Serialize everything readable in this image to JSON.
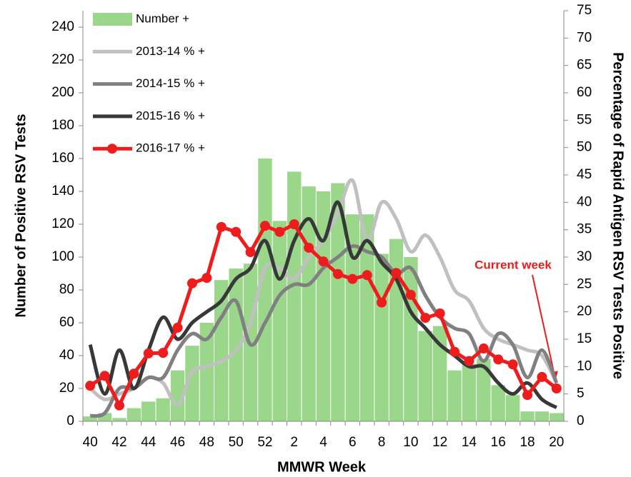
{
  "chart_data": {
    "type": "bar-line",
    "x_label": "MMWR Week",
    "y_label": "Number of Positive RSV Tests",
    "y2_label": "Percentage of Rapid Antigen RSV Tests Positive",
    "annotation": "Current week",
    "legend": "top-left",
    "categories": [
      "40",
      null,
      "42",
      null,
      "44",
      null,
      "46",
      null,
      "48",
      null,
      "50",
      null,
      "52",
      null,
      "2",
      null,
      "4",
      null,
      "6",
      null,
      "8",
      null,
      "10",
      null,
      "12",
      null,
      "14",
      null,
      "16",
      null,
      "18",
      null,
      "20"
    ],
    "ylim": [
      0,
      250
    ],
    "yticks": [
      0,
      20,
      40,
      60,
      80,
      100,
      120,
      140,
      160,
      180,
      200,
      220,
      240
    ],
    "y2lim": [
      0,
      75
    ],
    "y2ticks": [
      0,
      5,
      10,
      15,
      20,
      25,
      30,
      35,
      40,
      45,
      50,
      55,
      60,
      65,
      70,
      75
    ],
    "series": [
      {
        "name": "Number +",
        "type": "bar",
        "color": "#9ad78b",
        "values": [
          3,
          5,
          2,
          8,
          12,
          14,
          31,
          46,
          60,
          86,
          93,
          96,
          160,
          122,
          152,
          143,
          140,
          145,
          126,
          126,
          102,
          111,
          100,
          55,
          58,
          31,
          35,
          38,
          22,
          16,
          6,
          6,
          5
        ]
      },
      {
        "name": "2013-14 % +",
        "type": "line",
        "axis": "y2",
        "color": "#c0c0c0",
        "smooth": true,
        "values": [
          6,
          4,
          5,
          6,
          8,
          7,
          3,
          9,
          10,
          11,
          13,
          18,
          28,
          28,
          26,
          30,
          33,
          38,
          44,
          33,
          40,
          37,
          31,
          34,
          30,
          24,
          22,
          17,
          15,
          14,
          13,
          12,
          7
        ]
      },
      {
        "name": "2014-15 % +",
        "type": "line",
        "axis": "y2",
        "color": "#808080",
        "smooth": true,
        "values": [
          1,
          1.5,
          6,
          6,
          8,
          8,
          13,
          16,
          15,
          19,
          22,
          14,
          18,
          23,
          25,
          25,
          28,
          30,
          32,
          31,
          30,
          27,
          28,
          23,
          19,
          17,
          16,
          11,
          16,
          14,
          8,
          13,
          7
        ]
      },
      {
        "name": "2015-16 % +",
        "type": "line",
        "axis": "y2",
        "color": "#383838",
        "smooth": true,
        "values": [
          14,
          5,
          13,
          6,
          13,
          19,
          15,
          18,
          20,
          22,
          26,
          28,
          33,
          26,
          33,
          37,
          33,
          40,
          30,
          33,
          29,
          26,
          20,
          17,
          14,
          12,
          10,
          10,
          7,
          5,
          7,
          4,
          2.5
        ]
      },
      {
        "name": "2016-17 % +",
        "type": "line",
        "axis": "y2",
        "color": "#ee1c1c",
        "markers": true,
        "values": [
          6.5,
          8.3,
          2.9,
          8.7,
          12.4,
          12.5,
          17.1,
          25.2,
          26.2,
          35.5,
          34.6,
          30.9,
          35.7,
          34.6,
          36,
          31.7,
          29.2,
          26.9,
          26,
          26.7,
          21.7,
          27.1,
          23.1,
          18.9,
          19.7,
          12.7,
          11,
          13.3,
          11.3,
          10.4,
          4.8,
          8.1,
          6
        ]
      }
    ]
  }
}
